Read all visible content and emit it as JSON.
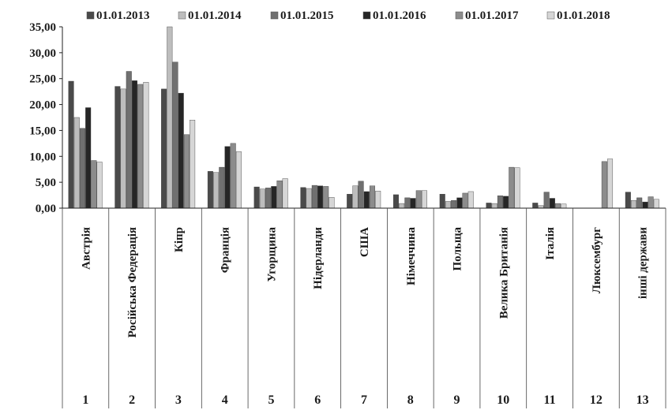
{
  "chart_data": {
    "type": "bar",
    "ylim": [
      0,
      35
    ],
    "yticks": [
      "0,00",
      "5,00",
      "10,00",
      "15,00",
      "20,00",
      "25,00",
      "30,00",
      "35,00"
    ],
    "grid": false,
    "legend_position": "top",
    "categories": [
      "Австрія",
      "Російська Федерація",
      "Кіпр",
      "Франція",
      "Угорщина",
      "Нідерланди",
      "США",
      "Німеччина",
      "Польща",
      "Велика Британія",
      "Італія",
      "Люксембург",
      "інші держави"
    ],
    "row_numbers": [
      "1",
      "2",
      "3",
      "4",
      "5",
      "6",
      "7",
      "8",
      "9",
      "10",
      "11",
      "12",
      "13"
    ],
    "series": [
      {
        "name": "01.01.2013",
        "color": "#4a4a4a",
        "values": [
          24.5,
          23.5,
          23.0,
          7.1,
          4.1,
          4.0,
          2.7,
          2.6,
          2.7,
          1.0,
          1.0,
          0.0,
          3.1
        ]
      },
      {
        "name": "01.01.2014",
        "color": "#bdbdbd",
        "values": [
          17.5,
          23.0,
          35.0,
          6.9,
          3.7,
          3.8,
          4.3,
          0.9,
          1.3,
          0.9,
          0.5,
          0.0,
          1.5
        ]
      },
      {
        "name": "01.01.2015",
        "color": "#707070",
        "values": [
          15.4,
          26.4,
          28.2,
          7.9,
          3.9,
          4.4,
          5.2,
          2.0,
          1.5,
          2.4,
          3.1,
          0.0,
          2.0
        ]
      },
      {
        "name": "01.01.2016",
        "color": "#262626",
        "values": [
          19.4,
          24.6,
          22.2,
          11.9,
          4.2,
          4.3,
          3.2,
          1.9,
          2.0,
          2.3,
          1.9,
          0.0,
          1.2
        ]
      },
      {
        "name": "01.01.2017",
        "color": "#8c8c8c",
        "values": [
          9.2,
          23.9,
          14.2,
          12.5,
          5.3,
          4.2,
          4.3,
          3.4,
          2.9,
          7.9,
          0.9,
          9.0,
          2.2
        ]
      },
      {
        "name": "01.01.2018",
        "color": "#d6d6d6",
        "values": [
          8.9,
          24.3,
          17.0,
          10.9,
          5.7,
          2.1,
          3.3,
          3.4,
          3.2,
          7.8,
          0.8,
          9.5,
          1.7
        ]
      }
    ]
  }
}
